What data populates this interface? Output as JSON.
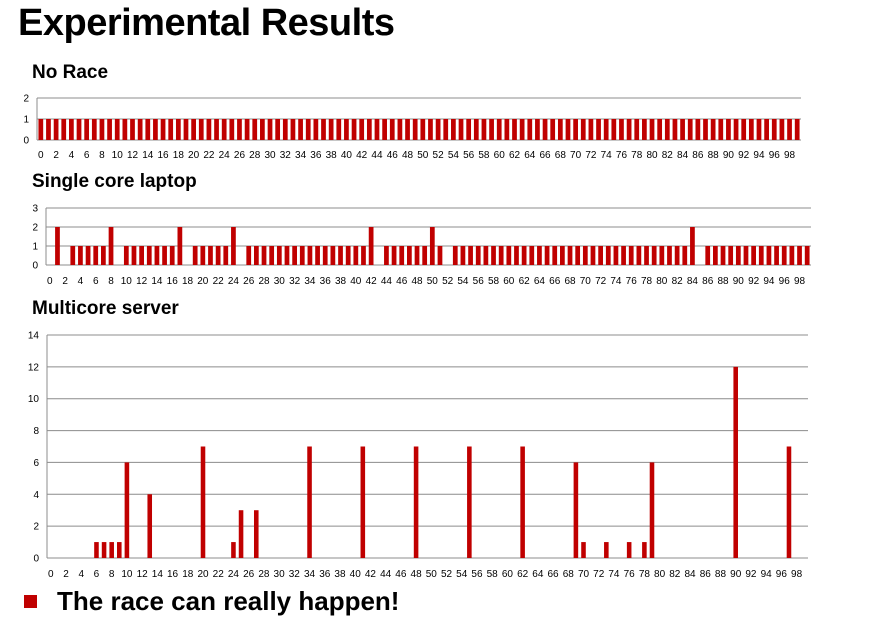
{
  "slide": {
    "title": "Experimental Results",
    "bullet": "The race can really happen!",
    "bullet_color": "#c00000"
  },
  "chart_data": [
    {
      "type": "bar",
      "title": "No Race",
      "bar_color": "#c00000",
      "grid": true,
      "x": [
        0,
        1,
        2,
        3,
        4,
        5,
        6,
        7,
        8,
        9,
        10,
        11,
        12,
        13,
        14,
        15,
        16,
        17,
        18,
        19,
        20,
        21,
        22,
        23,
        24,
        25,
        26,
        27,
        28,
        29,
        30,
        31,
        32,
        33,
        34,
        35,
        36,
        37,
        38,
        39,
        40,
        41,
        42,
        43,
        44,
        45,
        46,
        47,
        48,
        49,
        50,
        51,
        52,
        53,
        54,
        55,
        56,
        57,
        58,
        59,
        60,
        61,
        62,
        63,
        64,
        65,
        66,
        67,
        68,
        69,
        70,
        71,
        72,
        73,
        74,
        75,
        76,
        77,
        78,
        79,
        80,
        81,
        82,
        83,
        84,
        85,
        86,
        87,
        88,
        89,
        90,
        91,
        92,
        93,
        94,
        95,
        96,
        97,
        98,
        99
      ],
      "values": [
        1,
        1,
        1,
        1,
        1,
        1,
        1,
        1,
        1,
        1,
        1,
        1,
        1,
        1,
        1,
        1,
        1,
        1,
        1,
        1,
        1,
        1,
        1,
        1,
        1,
        1,
        1,
        1,
        1,
        1,
        1,
        1,
        1,
        1,
        1,
        1,
        1,
        1,
        1,
        1,
        1,
        1,
        1,
        1,
        1,
        1,
        1,
        1,
        1,
        1,
        1,
        1,
        1,
        1,
        1,
        1,
        1,
        1,
        1,
        1,
        1,
        1,
        1,
        1,
        1,
        1,
        1,
        1,
        1,
        1,
        1,
        1,
        1,
        1,
        1,
        1,
        1,
        1,
        1,
        1,
        1,
        1,
        1,
        1,
        1,
        1,
        1,
        1,
        1,
        1,
        1,
        1,
        1,
        1,
        1,
        1,
        1,
        1,
        1,
        1
      ],
      "xticks": [
        0,
        2,
        4,
        6,
        8,
        10,
        12,
        14,
        16,
        18,
        20,
        22,
        24,
        26,
        28,
        30,
        32,
        34,
        36,
        38,
        40,
        42,
        44,
        46,
        48,
        50,
        52,
        54,
        56,
        58,
        60,
        62,
        64,
        66,
        68,
        70,
        72,
        74,
        76,
        78,
        80,
        82,
        84,
        86,
        88,
        90,
        92,
        94,
        96,
        98
      ],
      "ylim": [
        0,
        2
      ],
      "yticks": [
        0,
        1,
        2
      ]
    },
    {
      "type": "bar",
      "title": "Single core laptop",
      "bar_color": "#c00000",
      "grid": true,
      "x": [
        0,
        1,
        2,
        3,
        4,
        5,
        6,
        7,
        8,
        9,
        10,
        11,
        12,
        13,
        14,
        15,
        16,
        17,
        18,
        19,
        20,
        21,
        22,
        23,
        24,
        25,
        26,
        27,
        28,
        29,
        30,
        31,
        32,
        33,
        34,
        35,
        36,
        37,
        38,
        39,
        40,
        41,
        42,
        43,
        44,
        45,
        46,
        47,
        48,
        49,
        50,
        51,
        52,
        53,
        54,
        55,
        56,
        57,
        58,
        59,
        60,
        61,
        62,
        63,
        64,
        65,
        66,
        67,
        68,
        69,
        70,
        71,
        72,
        73,
        74,
        75,
        76,
        77,
        78,
        79,
        80,
        81,
        82,
        83,
        84,
        85,
        86,
        87,
        88,
        89,
        90,
        91,
        92,
        93,
        94,
        95,
        96,
        97,
        98,
        99
      ],
      "values": [
        0,
        2,
        0,
        1,
        1,
        1,
        1,
        1,
        2,
        0,
        1,
        1,
        1,
        1,
        1,
        1,
        1,
        2,
        0,
        1,
        1,
        1,
        1,
        1,
        2,
        0,
        1,
        1,
        1,
        1,
        1,
        1,
        1,
        1,
        1,
        1,
        1,
        1,
        1,
        1,
        1,
        1,
        2,
        0,
        1,
        1,
        1,
        1,
        1,
        1,
        2,
        1,
        0,
        1,
        1,
        1,
        1,
        1,
        1,
        1,
        1,
        1,
        1,
        1,
        1,
        1,
        1,
        1,
        1,
        1,
        1,
        1,
        1,
        1,
        1,
        1,
        1,
        1,
        1,
        1,
        1,
        1,
        1,
        1,
        2,
        0,
        1,
        1,
        1,
        1,
        1,
        1,
        1,
        1,
        1,
        1,
        1,
        1,
        1,
        1
      ],
      "xticks": [
        0,
        2,
        4,
        6,
        8,
        10,
        12,
        14,
        16,
        18,
        20,
        22,
        24,
        26,
        28,
        30,
        32,
        34,
        36,
        38,
        40,
        42,
        44,
        46,
        48,
        50,
        52,
        54,
        56,
        58,
        60,
        62,
        64,
        66,
        68,
        70,
        72,
        74,
        76,
        78,
        80,
        82,
        84,
        86,
        88,
        90,
        92,
        94,
        96,
        98
      ],
      "ylim": [
        0,
        3
      ],
      "yticks": [
        0,
        1,
        2,
        3
      ]
    },
    {
      "type": "bar",
      "title": "Multicore server",
      "bar_color": "#c00000",
      "grid": true,
      "x": [
        0,
        1,
        2,
        3,
        4,
        5,
        6,
        7,
        8,
        9,
        10,
        11,
        12,
        13,
        14,
        15,
        16,
        17,
        18,
        19,
        20,
        21,
        22,
        23,
        24,
        25,
        26,
        27,
        28,
        29,
        30,
        31,
        32,
        33,
        34,
        35,
        36,
        37,
        38,
        39,
        40,
        41,
        42,
        43,
        44,
        45,
        46,
        47,
        48,
        49,
        50,
        51,
        52,
        53,
        54,
        55,
        56,
        57,
        58,
        59,
        60,
        61,
        62,
        63,
        64,
        65,
        66,
        67,
        68,
        69,
        70,
        71,
        72,
        73,
        74,
        75,
        76,
        77,
        78,
        79,
        80,
        81,
        82,
        83,
        84,
        85,
        86,
        87,
        88,
        89,
        90,
        91,
        92,
        93,
        94,
        95,
        96,
        97,
        98,
        99
      ],
      "values": [
        0,
        0,
        0,
        0,
        0,
        0,
        1,
        1,
        1,
        1,
        6,
        0,
        0,
        4,
        0,
        0,
        0,
        0,
        0,
        0,
        7,
        0,
        0,
        0,
        1,
        3,
        0,
        3,
        0,
        0,
        0,
        0,
        0,
        0,
        7,
        0,
        0,
        0,
        0,
        0,
        0,
        7,
        0,
        0,
        0,
        0,
        0,
        0,
        7,
        0,
        0,
        0,
        0,
        0,
        0,
        7,
        0,
        0,
        0,
        0,
        0,
        0,
        7,
        0,
        0,
        0,
        0,
        0,
        0,
        6,
        1,
        0,
        0,
        1,
        0,
        0,
        1,
        0,
        1,
        6,
        0,
        0,
        0,
        0,
        0,
        0,
        0,
        0,
        0,
        0,
        12,
        0,
        0,
        0,
        0,
        0,
        0,
        7,
        0,
        0
      ],
      "xticks": [
        0,
        2,
        4,
        6,
        8,
        10,
        12,
        14,
        16,
        18,
        20,
        22,
        24,
        26,
        28,
        30,
        32,
        34,
        36,
        38,
        40,
        42,
        44,
        46,
        48,
        50,
        52,
        54,
        56,
        58,
        60,
        62,
        64,
        66,
        68,
        70,
        72,
        74,
        76,
        78,
        80,
        82,
        84,
        86,
        88,
        90,
        92,
        94,
        96,
        98
      ],
      "ylim": [
        0,
        14
      ],
      "yticks": [
        0,
        2,
        4,
        6,
        8,
        10,
        12,
        14
      ]
    }
  ]
}
